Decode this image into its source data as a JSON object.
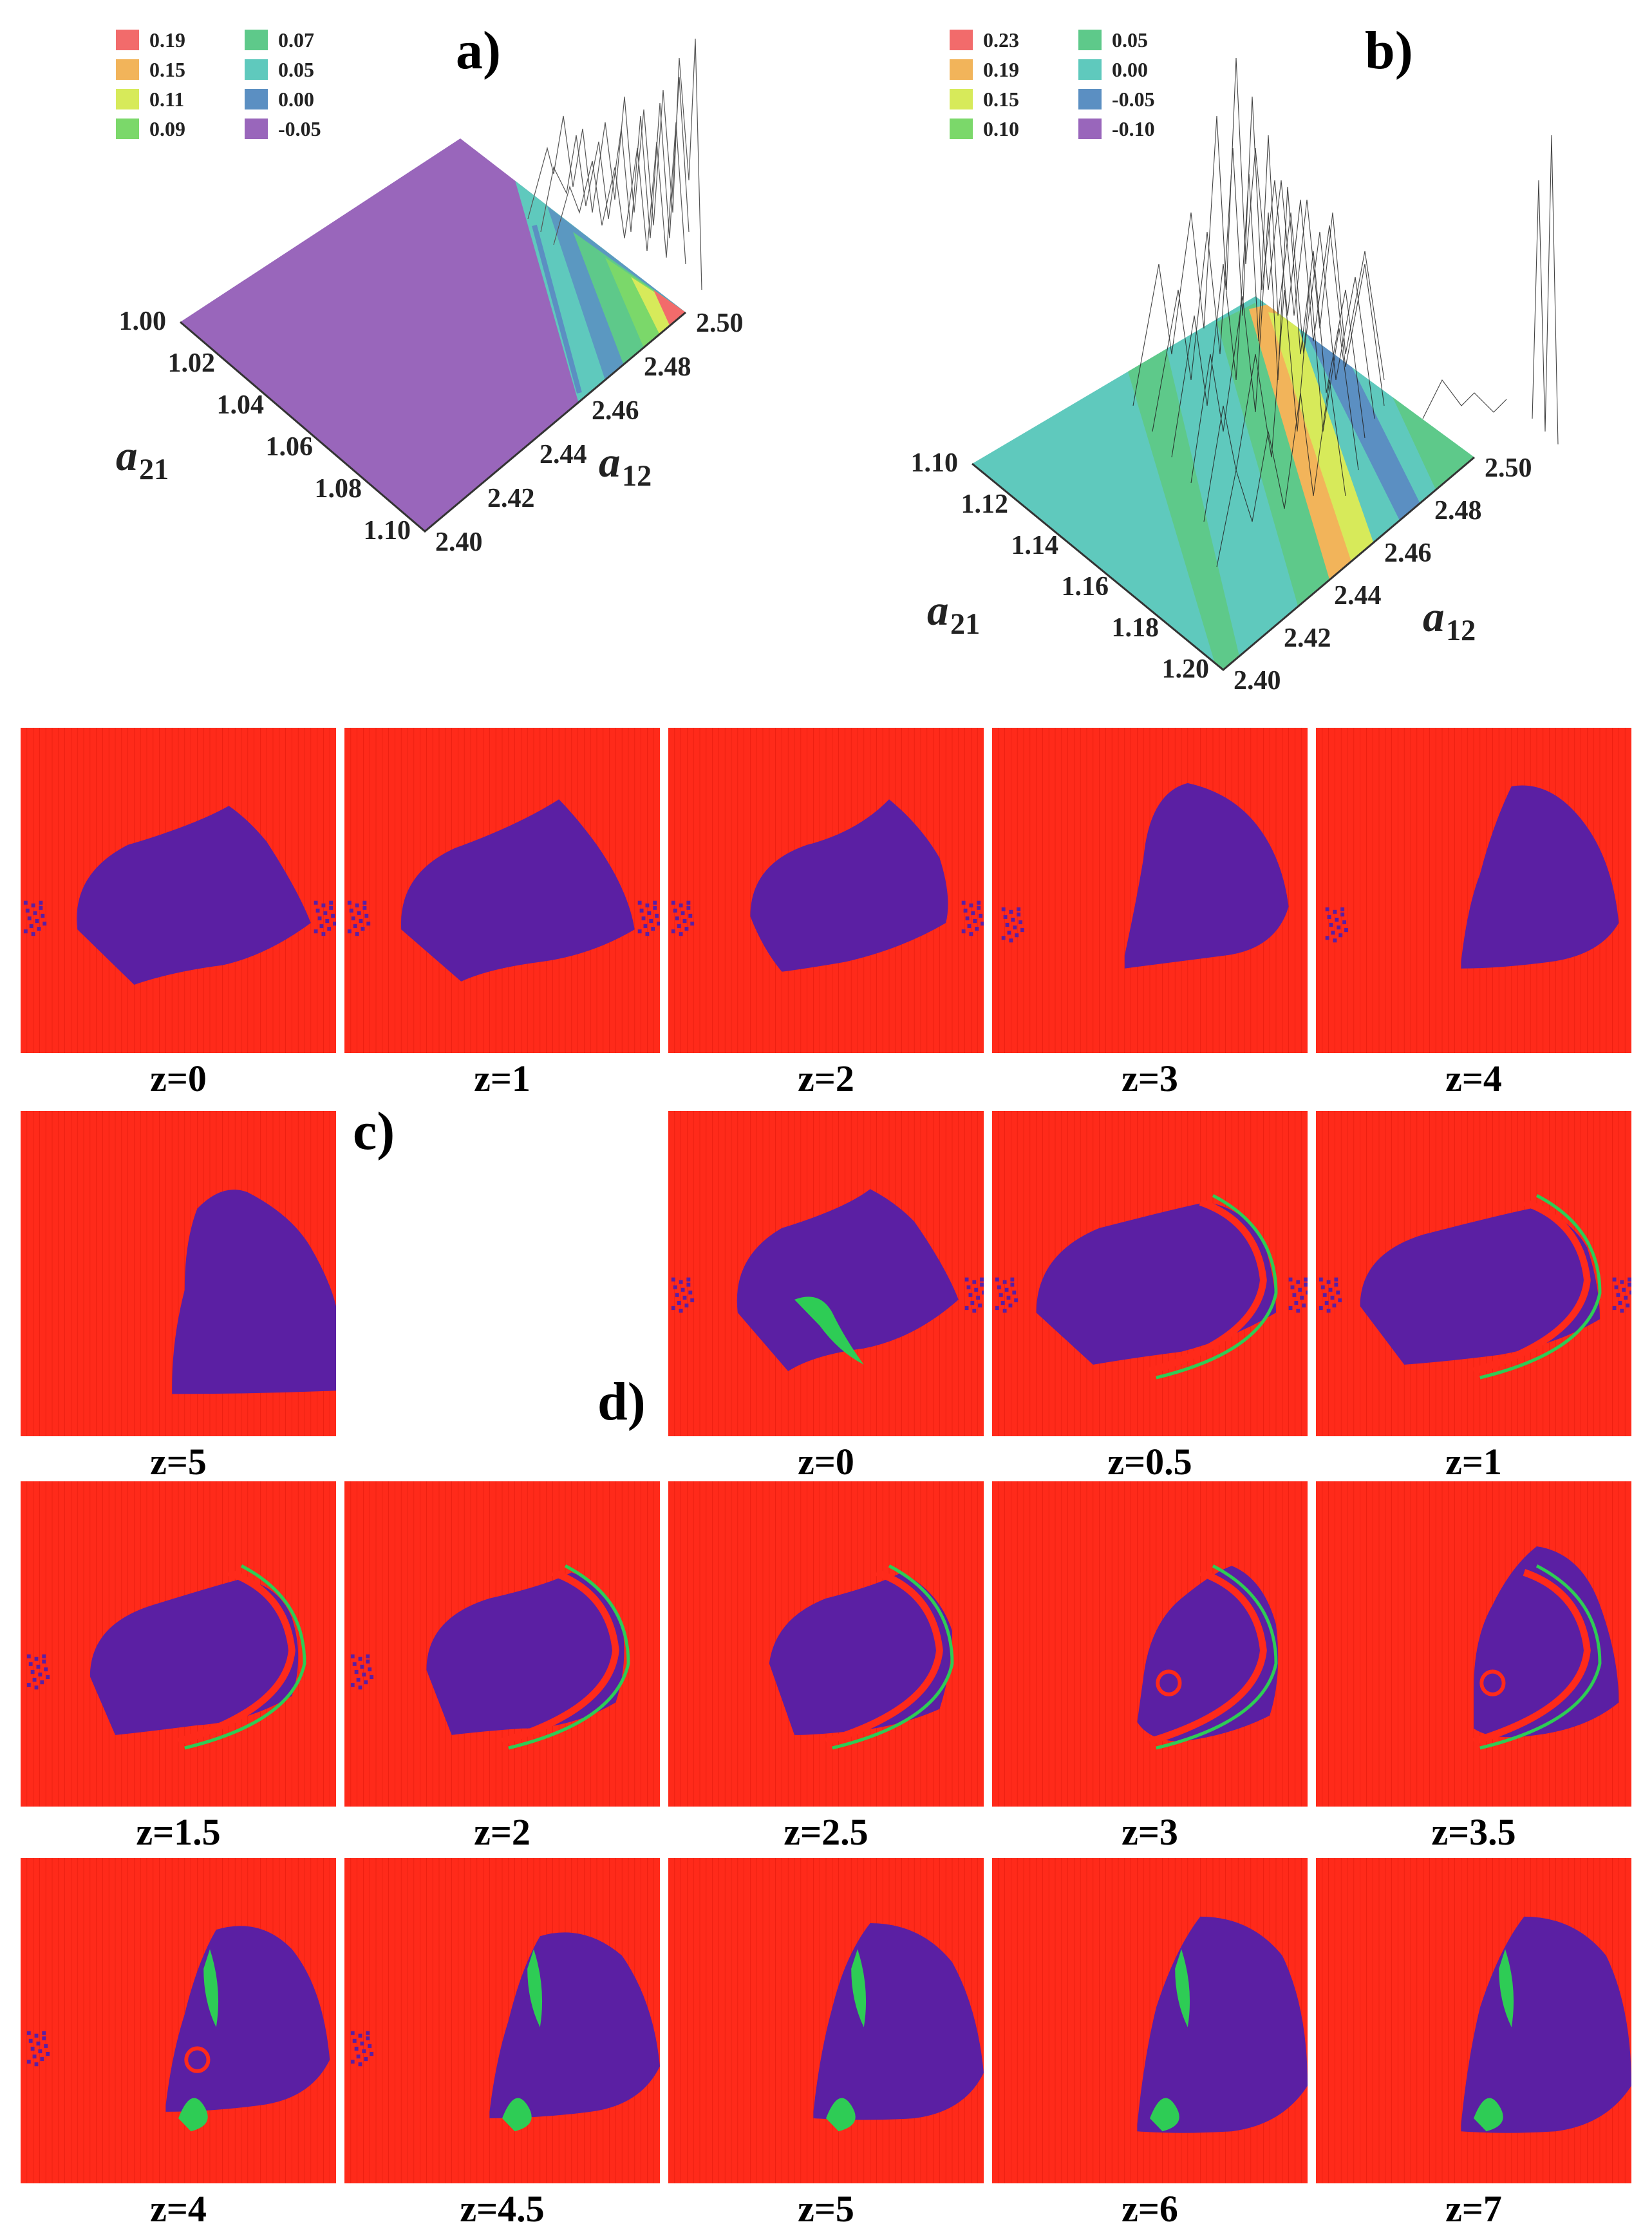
{
  "panel_a": {
    "label": "a)",
    "legend": [
      {
        "value": "0.19",
        "color": "#f26b6b"
      },
      {
        "value": "0.15",
        "color": "#f2b45a"
      },
      {
        "value": "0.11",
        "color": "#d7ea5a"
      },
      {
        "value": "0.09",
        "color": "#7bd86a"
      },
      {
        "value": "0.07",
        "color": "#5ec98a"
      },
      {
        "value": "0.05",
        "color": "#5fc9bd"
      },
      {
        "value": "0.00",
        "color": "#5b8fc2"
      },
      {
        "value": "-0.05",
        "color": "#9966bb"
      }
    ],
    "axis_a21": {
      "label": "a",
      "sub": "21",
      "ticks": [
        "1.00",
        "1.02",
        "1.04",
        "1.06",
        "1.08",
        "1.10"
      ]
    },
    "axis_a12": {
      "label": "a",
      "sub": "12",
      "ticks": [
        "2.40",
        "2.42",
        "2.44",
        "2.46",
        "2.48",
        "2.50"
      ]
    }
  },
  "panel_b": {
    "label": "b)",
    "legend": [
      {
        "value": "0.23",
        "color": "#f26b6b"
      },
      {
        "value": "0.19",
        "color": "#f2b45a"
      },
      {
        "value": "0.15",
        "color": "#d7ea5a"
      },
      {
        "value": "0.10",
        "color": "#7bd86a"
      },
      {
        "value": "0.05",
        "color": "#5ec98a"
      },
      {
        "value": "0.00",
        "color": "#5fc9bd"
      },
      {
        "value": "-0.05",
        "color": "#5b8fc2"
      },
      {
        "value": "-0.10",
        "color": "#9966bb"
      }
    ],
    "axis_a21": {
      "label": "a",
      "sub": "21",
      "ticks": [
        "1.10",
        "1.12",
        "1.14",
        "1.16",
        "1.18",
        "1.20"
      ]
    },
    "axis_a12": {
      "label": "a",
      "sub": "12",
      "ticks": [
        "2.40",
        "2.42",
        "2.44",
        "2.46",
        "2.48",
        "2.50"
      ]
    }
  },
  "panel_c": {
    "label": "c)",
    "captions": [
      "z=0",
      "z=1",
      "z=2",
      "z=3",
      "z=4",
      "z=5"
    ]
  },
  "panel_d": {
    "label": "d)",
    "captions": [
      "z=0",
      "z=0.5",
      "z=1",
      "z=1.5",
      "z=2",
      "z=2.5",
      "z=3",
      "z=3.5",
      "z=4",
      "z=4.5",
      "z=5",
      "z=6",
      "z=7"
    ]
  },
  "colors": {
    "background_basin": "#ff2a1a",
    "bounded_basin": "#5b1fa3",
    "secondary_basin": "#2ecc55",
    "surface_a": "#9966bb",
    "surface_b": "#5fc9bd"
  }
}
